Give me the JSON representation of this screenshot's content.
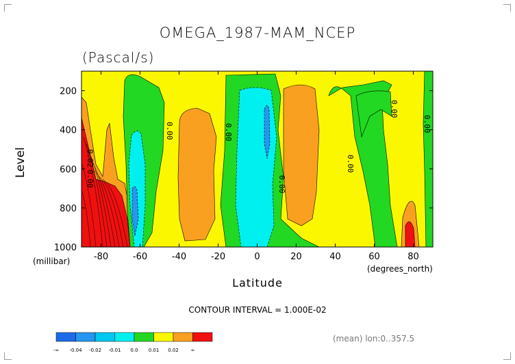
{
  "page": {
    "title": "OMEGA_1987-MAM_NCEP",
    "units": "(Pascal/s)",
    "contour_interval": "CONTOUR INTERVAL = 1.000E-02",
    "mean_note": "(mean) lon:0..357.5"
  },
  "chart_data": {
    "type": "heatmap",
    "title": "OMEGA_1987-MAM_NCEP",
    "subtitle": "(Pascal/s)",
    "xlabel": "Latitude",
    "ylabel": "Level",
    "x_unit": "(degrees_north)",
    "y_unit": "(millibar)",
    "xlim": [
      -90,
      90
    ],
    "ylim": [
      1000,
      100
    ],
    "y_reversed": true,
    "x_ticks": [
      -80,
      -60,
      -40,
      -20,
      0,
      20,
      40,
      60,
      80
    ],
    "y_ticks": [
      200,
      400,
      600,
      800,
      1000
    ],
    "contour_labels": [
      "0.02",
      "0.00",
      "0.00",
      "0.00",
      "0.00",
      "0.00",
      "0.00",
      "0.00"
    ],
    "color_scale": [
      {
        "range": "< -0.04",
        "color": "#1e6be8"
      },
      {
        "range": "-0.04 to -0.02",
        "color": "#2896f0"
      },
      {
        "range": "-0.02 to -0.01",
        "color": "#00c8f0"
      },
      {
        "range": "-0.01 to 0.0",
        "color": "#00f0f0"
      },
      {
        "range": "0.0 to 0.01",
        "color": "#22d822"
      },
      {
        "range": "0.01 to 0.02",
        "color": "#fbf700"
      },
      {
        "range": "0.02 to ∞",
        "color": "#f9a020"
      },
      {
        "range": "> 0.02",
        "color": "#f01010"
      }
    ],
    "colorbar_labels": [
      "-∞",
      "-0.04",
      "-0.02",
      "-0.01",
      "0.0",
      "0.01",
      "0.02",
      "∞"
    ],
    "regions": [
      {
        "name": "south-polar-descent",
        "value_class": "> 0.02",
        "lat": [
          -90,
          -68
        ],
        "levels": [
          340,
          1000
        ]
      },
      {
        "name": "southern-upward-band",
        "value_class": "-0.01 to 0.0",
        "lat": [
          -70,
          -48
        ],
        "levels": [
          110,
          1000
        ]
      },
      {
        "name": "southern-subtropical-descent",
        "value_class": "0.01 to 0.02",
        "lat": [
          -44,
          -22
        ],
        "levels": [
          260,
          960
        ]
      },
      {
        "name": "equatorial-ascent",
        "value_class": "-0.02 to -0.01",
        "lat": [
          -12,
          12
        ],
        "levels": [
          110,
          1000
        ]
      },
      {
        "name": "northern-subtropical-descent",
        "value_class": "0.01 to 0.02",
        "lat": [
          14,
          32
        ],
        "levels": [
          230,
          920
        ]
      },
      {
        "name": "northern-midlat-ascent",
        "value_class": "0.0 to 0.01",
        "lat": [
          40,
          68
        ],
        "levels": [
          110,
          1000
        ]
      },
      {
        "name": "north-polar-descent",
        "value_class": "> 0.02",
        "lat": [
          76,
          86
        ],
        "levels": [
          860,
          1000
        ]
      }
    ]
  }
}
